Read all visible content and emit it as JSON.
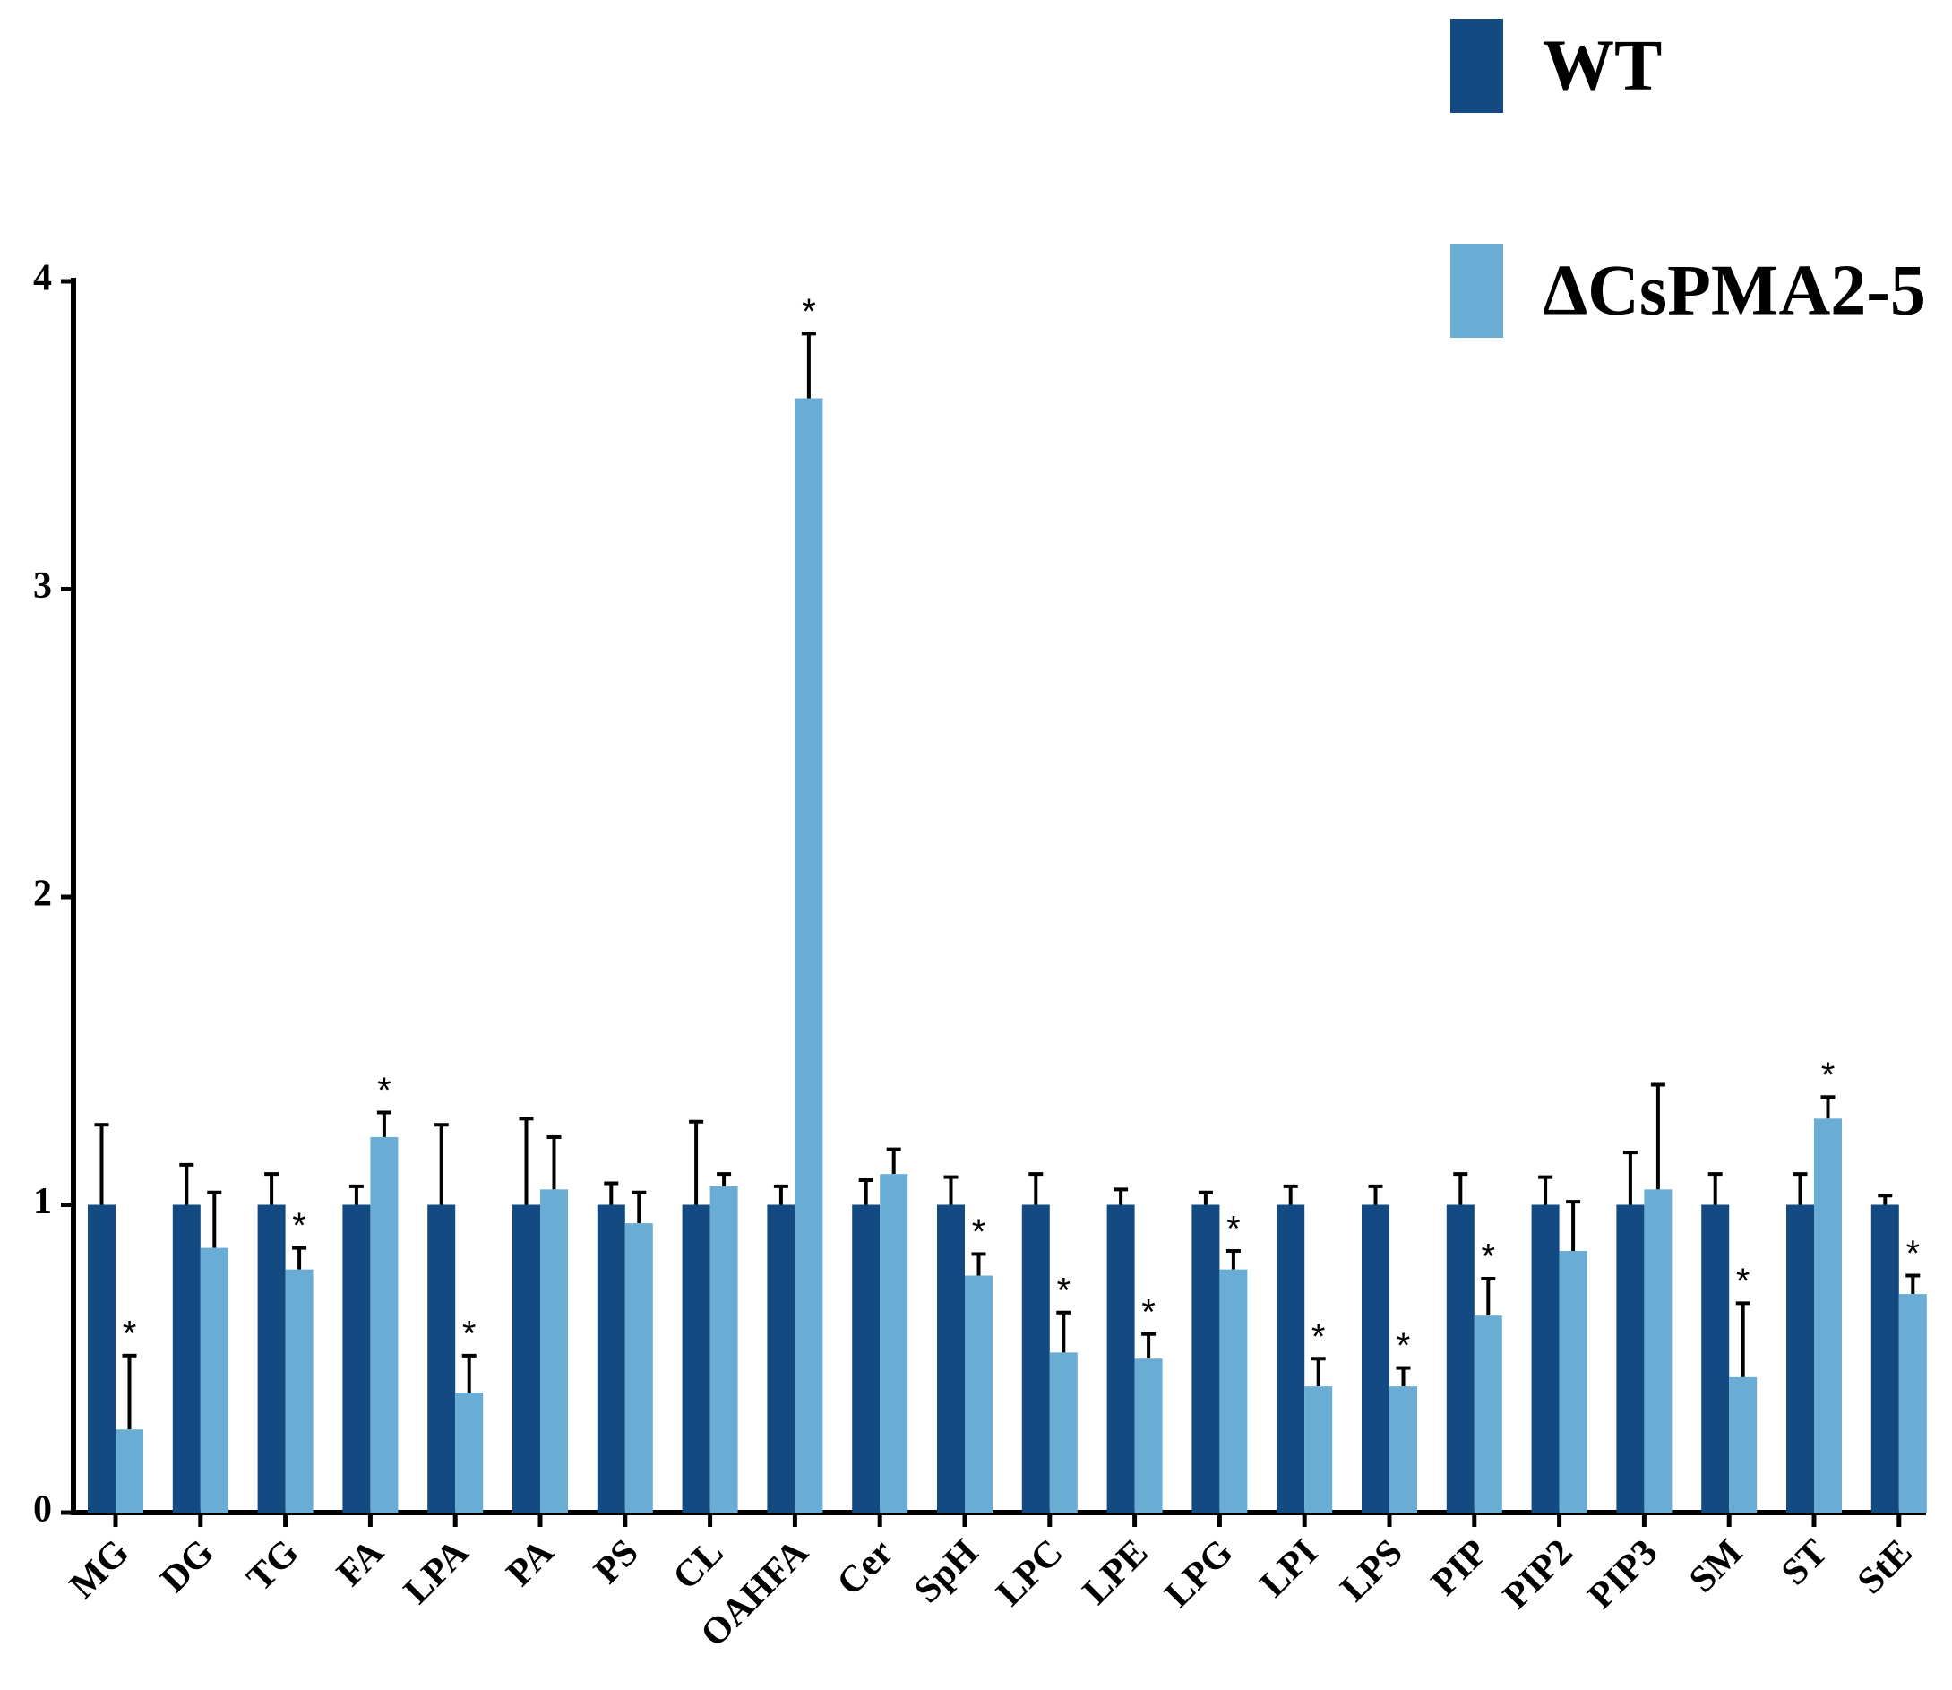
{
  "chart_data": {
    "type": "bar",
    "categories": [
      "MG",
      "DG",
      "TG",
      "FA",
      "LPA",
      "PA",
      "PS",
      "CL",
      "OAHFA",
      "Cer",
      "SpH",
      "LPC",
      "LPE",
      "LPG",
      "LPI",
      "LPS",
      "PIP",
      "PIP2",
      "PIP3",
      "SM",
      "ST",
      "StE"
    ],
    "series": [
      {
        "name": "WT",
        "color": "#134a82",
        "values": [
          1,
          1,
          1,
          1,
          1,
          1,
          1,
          1,
          1,
          1,
          1,
          1,
          1,
          1,
          1,
          1,
          1,
          1,
          1,
          1,
          1,
          1
        ],
        "errors": [
          0.26,
          0.13,
          0.1,
          0.06,
          0.26,
          0.28,
          0.07,
          0.27,
          0.06,
          0.08,
          0.09,
          0.1,
          0.05,
          0.04,
          0.06,
          0.06,
          0.1,
          0.09,
          0.17,
          0.1,
          0.1,
          0.03
        ]
      },
      {
        "name": "ΔCsPMA2-5",
        "color": "#6aadd4",
        "values": [
          0.27,
          0.86,
          0.79,
          1.22,
          0.39,
          1.05,
          0.94,
          1.06,
          3.62,
          1.1,
          0.77,
          0.52,
          0.5,
          0.79,
          0.41,
          0.41,
          0.64,
          0.85,
          1.05,
          0.44,
          1.28,
          0.71
        ],
        "errors": [
          0.24,
          0.18,
          0.07,
          0.08,
          0.12,
          0.17,
          0.1,
          0.04,
          0.21,
          0.08,
          0.07,
          0.13,
          0.08,
          0.06,
          0.09,
          0.06,
          0.12,
          0.16,
          0.34,
          0.24,
          0.07,
          0.06
        ],
        "significance": [
          "*",
          null,
          "*",
          "*",
          "*",
          null,
          null,
          null,
          "*",
          null,
          "*",
          "*",
          "*",
          "*",
          "*",
          "*",
          "*",
          null,
          null,
          "*",
          "*",
          "*"
        ]
      }
    ],
    "ylim": [
      0,
      4
    ],
    "yticks": [
      0,
      1,
      2,
      3,
      4
    ],
    "grid": false
  }
}
